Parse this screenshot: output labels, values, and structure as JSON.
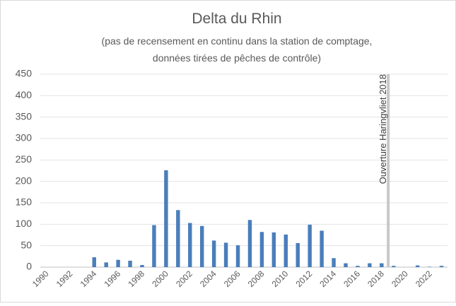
{
  "chart_data": {
    "type": "bar",
    "title": "Delta du Rhin",
    "subtitle": [
      "(pas de recensement en continu dans la station de comptage,",
      "données tirées de pêches de contrôle)"
    ],
    "categories": [
      "1990",
      null,
      "1992",
      null,
      "1994",
      null,
      "1996",
      null,
      "1998",
      null,
      "2000",
      null,
      "2002",
      null,
      "2004",
      null,
      "2006",
      null,
      "2008",
      null,
      "2010",
      null,
      "2012",
      null,
      "2014",
      null,
      "2016",
      null,
      "2018",
      null,
      "2020",
      null,
      "2022",
      null
    ],
    "values": [
      0,
      0,
      0,
      0,
      23,
      11,
      17,
      15,
      5,
      98,
      226,
      133,
      103,
      96,
      62,
      57,
      51,
      110,
      82,
      81,
      76,
      56,
      99,
      85,
      21,
      9,
      3,
      9,
      9,
      3,
      0,
      4,
      1,
      3
    ],
    "color": "#4a7ebb",
    "ylim": [
      0,
      450
    ],
    "yticks": [
      0,
      50,
      100,
      150,
      200,
      250,
      300,
      350,
      400,
      450
    ],
    "grid": true,
    "annotation": {
      "text": "Ouverture Haringvliet 2018",
      "at": "2018",
      "color": "#c8c8c8"
    }
  }
}
